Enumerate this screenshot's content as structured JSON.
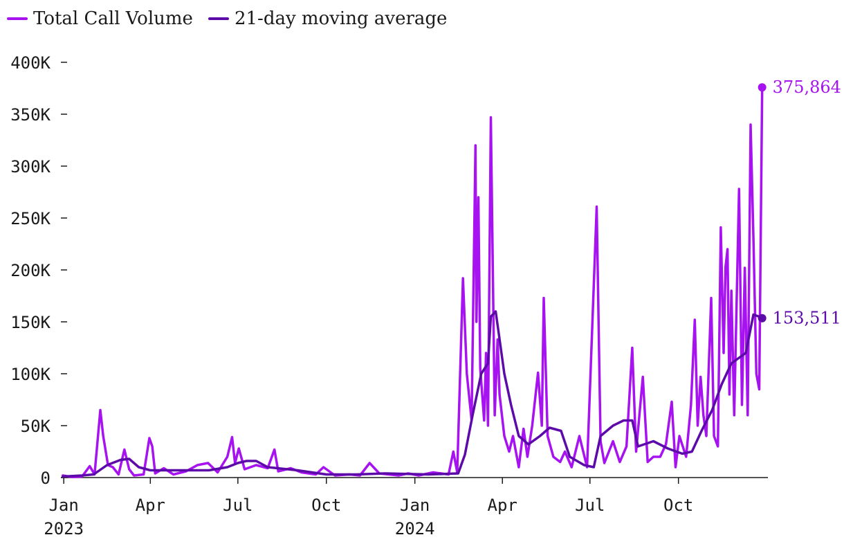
{
  "chart_data": {
    "type": "line",
    "title": "",
    "xlabel": "",
    "ylabel": "",
    "x_range": [
      "2022-12-29",
      "2025-01-02"
    ],
    "ylim": [
      0,
      400000
    ],
    "grid": false,
    "legend_position": "top-left",
    "y_ticks": [
      {
        "value": 0,
        "label": "0"
      },
      {
        "value": 50000,
        "label": "50K"
      },
      {
        "value": 100000,
        "label": "100K"
      },
      {
        "value": 150000,
        "label": "150K"
      },
      {
        "value": 200000,
        "label": "200K"
      },
      {
        "value": 250000,
        "label": "250K"
      },
      {
        "value": 300000,
        "label": "300K"
      },
      {
        "value": 350000,
        "label": "350K"
      },
      {
        "value": 400000,
        "label": "400K"
      }
    ],
    "x_ticks": [
      {
        "date": "2023-01-01",
        "label": "Jan",
        "sublabel": "2023"
      },
      {
        "date": "2023-04-01",
        "label": "Apr",
        "sublabel": ""
      },
      {
        "date": "2023-07-01",
        "label": "Jul",
        "sublabel": ""
      },
      {
        "date": "2023-10-01",
        "label": "Oct",
        "sublabel": ""
      },
      {
        "date": "2024-01-01",
        "label": "Jan",
        "sublabel": "2024"
      },
      {
        "date": "2024-04-01",
        "label": "Apr",
        "sublabel": ""
      },
      {
        "date": "2024-07-01",
        "label": "Jul",
        "sublabel": ""
      },
      {
        "date": "2024-10-01",
        "label": "Oct",
        "sublabel": ""
      }
    ],
    "series": [
      {
        "name": "Total Call Volume",
        "color": "#a712f0",
        "end_label": "375,864",
        "points": [
          [
            "2022-12-31",
            2000
          ],
          [
            "2023-01-10",
            500
          ],
          [
            "2023-01-20",
            1000
          ],
          [
            "2023-01-28",
            11000
          ],
          [
            "2023-02-02",
            3000
          ],
          [
            "2023-02-08",
            65000
          ],
          [
            "2023-02-11",
            40000
          ],
          [
            "2023-02-16",
            12000
          ],
          [
            "2023-02-21",
            10000
          ],
          [
            "2023-02-27",
            3000
          ],
          [
            "2023-03-05",
            27000
          ],
          [
            "2023-03-10",
            8000
          ],
          [
            "2023-03-15",
            2000
          ],
          [
            "2023-03-25",
            3000
          ],
          [
            "2023-03-31",
            38000
          ],
          [
            "2023-04-03",
            30000
          ],
          [
            "2023-04-06",
            4000
          ],
          [
            "2023-04-15",
            9000
          ],
          [
            "2023-04-25",
            3000
          ],
          [
            "2023-05-08",
            6000
          ],
          [
            "2023-05-20",
            12000
          ],
          [
            "2023-05-31",
            14000
          ],
          [
            "2023-06-10",
            5000
          ],
          [
            "2023-06-20",
            20000
          ],
          [
            "2023-06-25",
            39000
          ],
          [
            "2023-06-28",
            14000
          ],
          [
            "2023-07-02",
            28000
          ],
          [
            "2023-07-08",
            8000
          ],
          [
            "2023-07-20",
            12000
          ],
          [
            "2023-08-01",
            9000
          ],
          [
            "2023-08-08",
            27000
          ],
          [
            "2023-08-12",
            6000
          ],
          [
            "2023-08-25",
            9000
          ],
          [
            "2023-09-05",
            5000
          ],
          [
            "2023-09-20",
            3000
          ],
          [
            "2023-09-28",
            10000
          ],
          [
            "2023-10-10",
            2000
          ],
          [
            "2023-10-25",
            3000
          ],
          [
            "2023-11-05",
            2000
          ],
          [
            "2023-11-15",
            14000
          ],
          [
            "2023-11-25",
            4000
          ],
          [
            "2023-12-05",
            3000
          ],
          [
            "2023-12-15",
            2000
          ],
          [
            "2023-12-25",
            4000
          ],
          [
            "2024-01-05",
            2000
          ],
          [
            "2024-01-20",
            5000
          ],
          [
            "2024-02-05",
            3000
          ],
          [
            "2024-02-10",
            25000
          ],
          [
            "2024-02-14",
            5000
          ],
          [
            "2024-02-20",
            192000
          ],
          [
            "2024-02-24",
            100000
          ],
          [
            "2024-02-29",
            55000
          ],
          [
            "2024-03-04",
            320000
          ],
          [
            "2024-03-05",
            150000
          ],
          [
            "2024-03-07",
            270000
          ],
          [
            "2024-03-09",
            105000
          ],
          [
            "2024-03-13",
            55000
          ],
          [
            "2024-03-15",
            120000
          ],
          [
            "2024-03-17",
            50000
          ],
          [
            "2024-03-20",
            347000
          ],
          [
            "2024-03-24",
            60000
          ],
          [
            "2024-03-27",
            133000
          ],
          [
            "2024-03-29",
            80000
          ],
          [
            "2024-04-03",
            40000
          ],
          [
            "2024-04-08",
            25000
          ],
          [
            "2024-04-12",
            40000
          ],
          [
            "2024-04-18",
            10000
          ],
          [
            "2024-04-23",
            47000
          ],
          [
            "2024-04-27",
            20000
          ],
          [
            "2024-05-02",
            50000
          ],
          [
            "2024-05-08",
            101000
          ],
          [
            "2024-05-12",
            50000
          ],
          [
            "2024-05-14",
            173000
          ],
          [
            "2024-05-18",
            40000
          ],
          [
            "2024-05-24",
            20000
          ],
          [
            "2024-05-31",
            15000
          ],
          [
            "2024-06-05",
            25000
          ],
          [
            "2024-06-12",
            10000
          ],
          [
            "2024-06-20",
            40000
          ],
          [
            "2024-06-28",
            10000
          ],
          [
            "2024-07-08",
            261000
          ],
          [
            "2024-07-12",
            35000
          ],
          [
            "2024-07-16",
            14000
          ],
          [
            "2024-07-25",
            35000
          ],
          [
            "2024-08-01",
            15000
          ],
          [
            "2024-08-08",
            30000
          ],
          [
            "2024-08-14",
            125000
          ],
          [
            "2024-08-18",
            25000
          ],
          [
            "2024-08-25",
            97000
          ],
          [
            "2024-08-30",
            15000
          ],
          [
            "2024-09-05",
            20000
          ],
          [
            "2024-09-12",
            20000
          ],
          [
            "2024-09-18",
            32000
          ],
          [
            "2024-09-24",
            73000
          ],
          [
            "2024-09-28",
            10000
          ],
          [
            "2024-10-02",
            40000
          ],
          [
            "2024-10-09",
            20000
          ],
          [
            "2024-10-14",
            70000
          ],
          [
            "2024-10-18",
            152000
          ],
          [
            "2024-10-21",
            50000
          ],
          [
            "2024-10-24",
            97000
          ],
          [
            "2024-10-27",
            60000
          ],
          [
            "2024-10-30",
            40000
          ],
          [
            "2024-11-04",
            173000
          ],
          [
            "2024-11-07",
            40000
          ],
          [
            "2024-11-11",
            30000
          ],
          [
            "2024-11-14",
            241000
          ],
          [
            "2024-11-17",
            120000
          ],
          [
            "2024-11-19",
            203000
          ],
          [
            "2024-11-21",
            220000
          ],
          [
            "2024-11-23",
            80000
          ],
          [
            "2024-11-25",
            180000
          ],
          [
            "2024-11-28",
            60000
          ],
          [
            "2024-12-03",
            278000
          ],
          [
            "2024-12-06",
            70000
          ],
          [
            "2024-12-09",
            202000
          ],
          [
            "2024-12-12",
            60000
          ],
          [
            "2024-12-15",
            340000
          ],
          [
            "2024-12-18",
            230000
          ],
          [
            "2024-12-21",
            100000
          ],
          [
            "2024-12-24",
            85000
          ],
          [
            "2024-12-27",
            375864
          ]
        ]
      },
      {
        "name": "21-day moving average",
        "color": "#5c0aa8",
        "end_label": "153,511",
        "points": [
          [
            "2022-12-31",
            1000
          ],
          [
            "2023-01-20",
            2000
          ],
          [
            "2023-02-01",
            3000
          ],
          [
            "2023-02-15",
            12000
          ],
          [
            "2023-03-01",
            17000
          ],
          [
            "2023-03-10",
            18000
          ],
          [
            "2023-03-20",
            10000
          ],
          [
            "2023-04-01",
            7000
          ],
          [
            "2023-05-01",
            7000
          ],
          [
            "2023-06-01",
            7000
          ],
          [
            "2023-06-20",
            10000
          ],
          [
            "2023-07-01",
            14000
          ],
          [
            "2023-07-10",
            16000
          ],
          [
            "2023-07-20",
            16000
          ],
          [
            "2023-08-01",
            10000
          ],
          [
            "2023-09-01",
            7000
          ],
          [
            "2023-10-01",
            3000
          ],
          [
            "2023-11-01",
            3000
          ],
          [
            "2023-12-01",
            4000
          ],
          [
            "2024-01-15",
            3000
          ],
          [
            "2024-02-15",
            4000
          ],
          [
            "2024-02-22",
            22000
          ],
          [
            "2024-03-01",
            60000
          ],
          [
            "2024-03-10",
            100000
          ],
          [
            "2024-03-17",
            110000
          ],
          [
            "2024-03-20",
            155000
          ],
          [
            "2024-03-25",
            160000
          ],
          [
            "2024-03-28",
            140000
          ],
          [
            "2024-04-03",
            100000
          ],
          [
            "2024-04-10",
            70000
          ],
          [
            "2024-04-18",
            40000
          ],
          [
            "2024-04-28",
            32000
          ],
          [
            "2024-05-10",
            40000
          ],
          [
            "2024-05-20",
            48000
          ],
          [
            "2024-06-01",
            45000
          ],
          [
            "2024-06-10",
            20000
          ],
          [
            "2024-06-25",
            12000
          ],
          [
            "2024-07-05",
            10000
          ],
          [
            "2024-07-12",
            40000
          ],
          [
            "2024-07-25",
            50000
          ],
          [
            "2024-08-05",
            55000
          ],
          [
            "2024-08-14",
            55000
          ],
          [
            "2024-08-20",
            30000
          ],
          [
            "2024-09-05",
            35000
          ],
          [
            "2024-09-20",
            28000
          ],
          [
            "2024-10-05",
            23000
          ],
          [
            "2024-10-15",
            25000
          ],
          [
            "2024-10-25",
            45000
          ],
          [
            "2024-11-05",
            65000
          ],
          [
            "2024-11-15",
            90000
          ],
          [
            "2024-11-25",
            110000
          ],
          [
            "2024-12-10",
            120000
          ],
          [
            "2024-12-18",
            157000
          ],
          [
            "2024-12-24",
            155000
          ],
          [
            "2024-12-27",
            153511
          ]
        ]
      }
    ]
  }
}
